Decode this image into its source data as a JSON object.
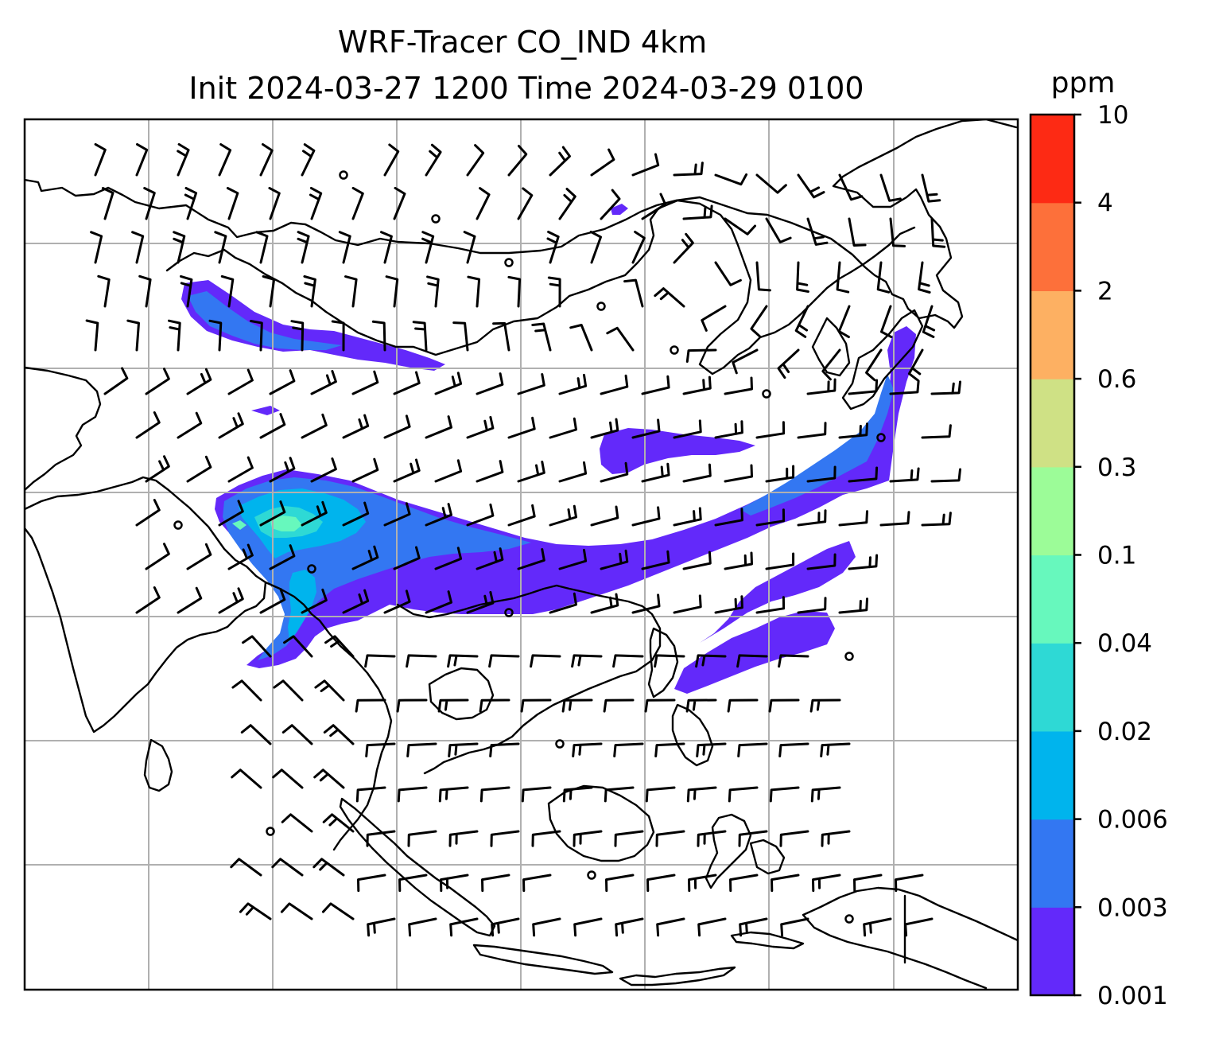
{
  "title": {
    "line1": "WRF-Tracer CO_IND 4km",
    "line2": "Init 2024-03-27 1200 Time 2024-03-29 0100"
  },
  "colorbar": {
    "unit": "ppm",
    "levels": [
      "0.001",
      "0.003",
      "0.006",
      "0.02",
      "0.04",
      "0.1",
      "0.3",
      "0.6",
      "2",
      "4",
      "10"
    ],
    "colors": [
      "#6329fa",
      "#3377f2",
      "#00b4ed",
      "#2ed9d5",
      "#67f8bd",
      "#9cfc98",
      "#cfe185",
      "#fdb062",
      "#fd703a",
      "#fd2a14"
    ]
  },
  "map": {
    "land_outline_color": "#000000",
    "gridline_color": "#b0b0b0",
    "wind_barbs": "black",
    "field": "CO_IND tracer concentration"
  }
}
